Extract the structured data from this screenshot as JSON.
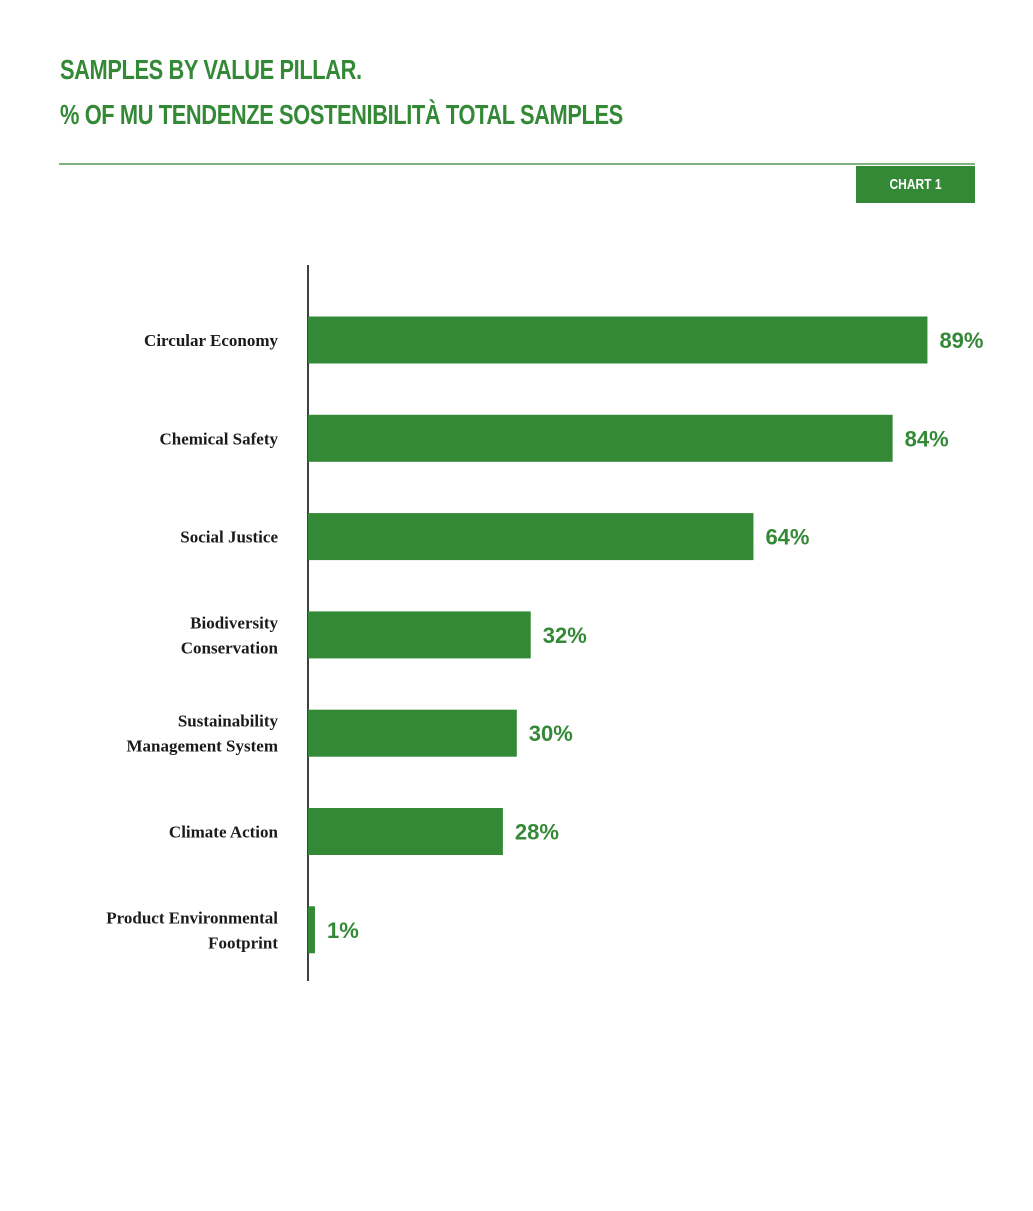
{
  "header": {
    "title_line1": "SAMPLES BY VALUE PILLAR.",
    "title_line2": "% OF MU TENDENZE SOSTENIBILITÀ TOTAL SAMPLES",
    "chart_tag": "CHART 1"
  },
  "colors": {
    "bar": "#348936",
    "title": "#348936",
    "rule": "#7fb27f",
    "axis": "#000000"
  },
  "chart_data": {
    "type": "bar",
    "orientation": "horizontal",
    "title": "SAMPLES BY VALUE PILLAR.",
    "subtitle": "% OF MU TENDENZE SOSTENIBILITÀ TOTAL SAMPLES",
    "categories": [
      [
        "Circular Economy"
      ],
      [
        "Chemical Safety"
      ],
      [
        "Social Justice"
      ],
      [
        "Biodiversity",
        "Conservation"
      ],
      [
        "Sustainability",
        "Management System"
      ],
      [
        "Climate Action"
      ],
      [
        "Product Environmental",
        "Footprint"
      ]
    ],
    "values": [
      89,
      84,
      64,
      32,
      30,
      28,
      1
    ],
    "value_labels": [
      "89%",
      "84%",
      "64%",
      "32%",
      "30%",
      "28%",
      "1%"
    ],
    "unit": "%",
    "xlim": [
      0,
      100
    ],
    "grid": false,
    "legend": "none"
  }
}
